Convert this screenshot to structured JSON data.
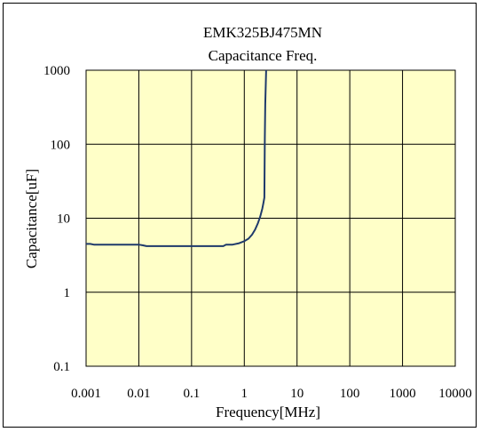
{
  "chart_data": {
    "type": "line",
    "title": "EMK325BJ475MN",
    "subtitle": "Capacitance Freq.",
    "xlabel": "Frequency[MHz]",
    "ylabel": "Capacitance[uF]",
    "x_scale": "log",
    "y_scale": "log",
    "xlim": [
      0.001,
      10000
    ],
    "ylim": [
      0.1,
      1000
    ],
    "x_ticks": [
      "0.001",
      "0.01",
      "0.1",
      "1",
      "10",
      "100",
      "1000",
      "10000"
    ],
    "y_ticks": [
      "0.1",
      "1",
      "10",
      "100",
      "1000"
    ],
    "grid": true,
    "colors": {
      "plot_background": "#ffffc8",
      "line": "#1f3a6b",
      "grid": "#000000"
    },
    "series": [
      {
        "x": [
          0.001,
          0.0012,
          0.0014,
          0.002,
          0.005,
          0.01,
          0.012,
          0.014,
          0.02,
          0.05,
          0.1,
          0.2,
          0.4,
          0.45,
          0.6,
          0.8,
          1.0,
          1.2,
          1.4,
          1.6,
          1.8,
          2.0,
          2.2,
          2.3,
          2.4,
          2.45,
          2.5,
          2.6
        ],
        "y": [
          4.5,
          4.5,
          4.4,
          4.4,
          4.4,
          4.4,
          4.3,
          4.2,
          4.2,
          4.2,
          4.2,
          4.2,
          4.2,
          4.4,
          4.4,
          4.6,
          4.9,
          5.3,
          6.0,
          7.0,
          8.5,
          10.5,
          13.5,
          16.0,
          19.0,
          120,
          350,
          1000
        ]
      }
    ]
  }
}
